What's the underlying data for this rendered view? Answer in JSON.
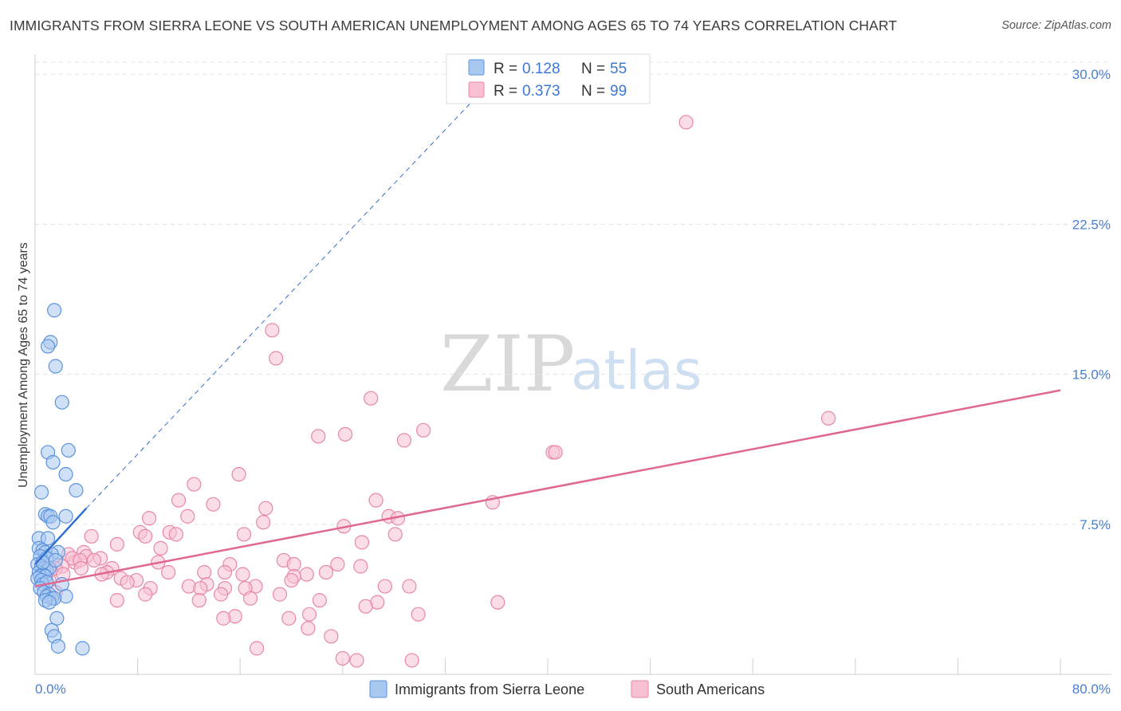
{
  "title": "IMMIGRANTS FROM SIERRA LEONE VS SOUTH AMERICAN UNEMPLOYMENT AMONG AGES 65 TO 74 YEARS CORRELATION CHART",
  "source": "Source: ZipAtlas.com",
  "watermark": {
    "zip": "ZIP",
    "atlas": "atlas"
  },
  "colors": {
    "series1_fill": "#a9c8f0",
    "series1_stroke": "#5b93dc",
    "series1_line": "#2f6fcf",
    "series2_fill": "#f7c1d3",
    "series2_stroke": "#e887a9",
    "series2_line": "#e0688f",
    "grid": "#e3e3e3",
    "tick_text": "#4a7fcf"
  },
  "legend": {
    "r_label": "R =",
    "n_label": "N =",
    "s1_r": "0.128",
    "s1_n": "55",
    "s2_r": "0.373",
    "s2_n": "99"
  },
  "chart_data": {
    "type": "scatter",
    "title": "IMMIGRANTS FROM SIERRA LEONE VS SOUTH AMERICAN UNEMPLOYMENT AMONG AGES 65 TO 74 YEARS CORRELATION CHART",
    "xlabel": "",
    "ylabel": "Unemployment Among Ages 65 to 74 years",
    "xlim": [
      0,
      80
    ],
    "ylim": [
      0,
      31
    ],
    "x_tick_labels": {
      "left": "0.0%",
      "right": "80.0%"
    },
    "y_ticks": [
      7.5,
      15.0,
      22.5,
      30.0
    ],
    "y_tick_labels": [
      "7.5%",
      "15.0%",
      "22.5%",
      "30.0%"
    ],
    "grid": true,
    "legend_position": "top-center",
    "series": [
      {
        "name": "Immigrants from Sierra Leone",
        "R": 0.128,
        "N": 55,
        "trend": {
          "x": [
            0,
            4.0
          ],
          "y": [
            5.5,
            8.3
          ],
          "extrapolated_to": [
            37,
            30.6
          ]
        },
        "points": [
          [
            1.5,
            18.2
          ],
          [
            1.2,
            16.6
          ],
          [
            1.0,
            16.4
          ],
          [
            1.6,
            15.4
          ],
          [
            2.1,
            13.6
          ],
          [
            2.6,
            11.2
          ],
          [
            1.0,
            11.1
          ],
          [
            1.4,
            10.6
          ],
          [
            2.4,
            10.0
          ],
          [
            3.2,
            9.2
          ],
          [
            0.5,
            9.1
          ],
          [
            0.8,
            8.0
          ],
          [
            1.0,
            7.9
          ],
          [
            1.2,
            7.9
          ],
          [
            2.4,
            7.9
          ],
          [
            1.4,
            7.6
          ],
          [
            0.3,
            6.8
          ],
          [
            1.0,
            6.8
          ],
          [
            0.3,
            6.3
          ],
          [
            0.6,
            6.2
          ],
          [
            0.8,
            6.1
          ],
          [
            1.8,
            6.1
          ],
          [
            1.3,
            6.0
          ],
          [
            0.4,
            5.9
          ],
          [
            0.9,
            5.8
          ],
          [
            0.2,
            5.5
          ],
          [
            0.5,
            5.4
          ],
          [
            0.7,
            5.3
          ],
          [
            0.9,
            5.2
          ],
          [
            1.1,
            5.3
          ],
          [
            0.3,
            5.1
          ],
          [
            0.6,
            5.0
          ],
          [
            0.4,
            4.9
          ],
          [
            0.8,
            4.9
          ],
          [
            0.2,
            4.8
          ],
          [
            0.5,
            4.7
          ],
          [
            0.6,
            4.5
          ],
          [
            0.9,
            4.6
          ],
          [
            2.1,
            4.5
          ],
          [
            0.4,
            4.3
          ],
          [
            0.7,
            4.1
          ],
          [
            1.1,
            4.0
          ],
          [
            0.9,
            3.9
          ],
          [
            1.3,
            3.8
          ],
          [
            2.4,
            3.9
          ],
          [
            1.5,
            3.8
          ],
          [
            0.8,
            3.7
          ],
          [
            1.1,
            3.6
          ],
          [
            1.7,
            2.8
          ],
          [
            1.3,
            2.2
          ],
          [
            1.5,
            1.9
          ],
          [
            1.8,
            1.4
          ],
          [
            3.7,
            1.3
          ],
          [
            0.6,
            5.6
          ],
          [
            1.6,
            5.7
          ]
        ]
      },
      {
        "name": "South Americans",
        "R": 0.373,
        "N": 99,
        "trend": {
          "x": [
            0,
            80
          ],
          "y": [
            4.4,
            14.2
          ]
        },
        "points": [
          [
            50.8,
            27.6
          ],
          [
            18.5,
            17.2
          ],
          [
            18.8,
            15.8
          ],
          [
            26.2,
            13.8
          ],
          [
            61.9,
            12.8
          ],
          [
            30.3,
            12.2
          ],
          [
            22.1,
            11.9
          ],
          [
            24.2,
            12.0
          ],
          [
            28.8,
            11.7
          ],
          [
            40.4,
            11.1
          ],
          [
            40.6,
            11.1
          ],
          [
            15.9,
            10.0
          ],
          [
            12.4,
            9.5
          ],
          [
            11.2,
            8.7
          ],
          [
            13.9,
            8.5
          ],
          [
            35.7,
            8.6
          ],
          [
            26.6,
            8.7
          ],
          [
            18.0,
            8.3
          ],
          [
            11.9,
            7.9
          ],
          [
            8.9,
            7.8
          ],
          [
            27.6,
            7.9
          ],
          [
            28.3,
            7.8
          ],
          [
            17.8,
            7.6
          ],
          [
            24.1,
            7.4
          ],
          [
            10.5,
            7.1
          ],
          [
            8.2,
            7.1
          ],
          [
            11.0,
            7.0
          ],
          [
            16.3,
            7.0
          ],
          [
            28.1,
            7.0
          ],
          [
            8.6,
            6.9
          ],
          [
            4.4,
            6.9
          ],
          [
            6.4,
            6.5
          ],
          [
            25.5,
            6.6
          ],
          [
            9.8,
            6.3
          ],
          [
            3.8,
            6.1
          ],
          [
            2.6,
            6.0
          ],
          [
            4.0,
            5.9
          ],
          [
            5.1,
            5.8
          ],
          [
            4.6,
            5.7
          ],
          [
            3.1,
            5.6
          ],
          [
            2.9,
            5.8
          ],
          [
            3.5,
            5.7
          ],
          [
            19.4,
            5.7
          ],
          [
            20.2,
            5.5
          ],
          [
            23.6,
            5.5
          ],
          [
            9.6,
            5.6
          ],
          [
            15.2,
            5.5
          ],
          [
            25.4,
            5.4
          ],
          [
            2.1,
            5.4
          ],
          [
            3.6,
            5.3
          ],
          [
            1.6,
            5.3
          ],
          [
            6.0,
            5.3
          ],
          [
            1.2,
            5.2
          ],
          [
            13.2,
            5.1
          ],
          [
            5.6,
            5.1
          ],
          [
            10.4,
            5.1
          ],
          [
            22.7,
            5.1
          ],
          [
            14.8,
            5.1
          ],
          [
            2.2,
            5.0
          ],
          [
            5.2,
            5.0
          ],
          [
            16.2,
            5.0
          ],
          [
            21.2,
            5.0
          ],
          [
            20.2,
            4.9
          ],
          [
            6.7,
            4.8
          ],
          [
            7.9,
            4.7
          ],
          [
            20.0,
            4.7
          ],
          [
            7.2,
            4.6
          ],
          [
            1.1,
            4.7
          ],
          [
            12.0,
            4.4
          ],
          [
            13.4,
            4.5
          ],
          [
            17.2,
            4.4
          ],
          [
            16.4,
            4.3
          ],
          [
            14.8,
            4.3
          ],
          [
            27.3,
            4.4
          ],
          [
            29.2,
            4.4
          ],
          [
            9.0,
            4.3
          ],
          [
            12.9,
            4.3
          ],
          [
            1.6,
            4.1
          ],
          [
            14.5,
            4.0
          ],
          [
            8.6,
            4.0
          ],
          [
            19.1,
            4.0
          ],
          [
            6.4,
            3.7
          ],
          [
            12.8,
            3.7
          ],
          [
            22.2,
            3.7
          ],
          [
            16.8,
            3.8
          ],
          [
            36.1,
            3.6
          ],
          [
            26.7,
            3.6
          ],
          [
            25.8,
            3.4
          ],
          [
            29.9,
            3.0
          ],
          [
            21.4,
            3.0
          ],
          [
            15.6,
            2.9
          ],
          [
            14.7,
            2.8
          ],
          [
            19.8,
            2.8
          ],
          [
            21.3,
            2.3
          ],
          [
            23.1,
            1.9
          ],
          [
            17.3,
            1.3
          ],
          [
            24.0,
            0.8
          ],
          [
            25.1,
            0.7
          ],
          [
            29.4,
            0.7
          ]
        ]
      }
    ]
  },
  "bottom_legend": {
    "s1_label": "Immigrants from Sierra Leone",
    "s2_label": "South Americans"
  }
}
